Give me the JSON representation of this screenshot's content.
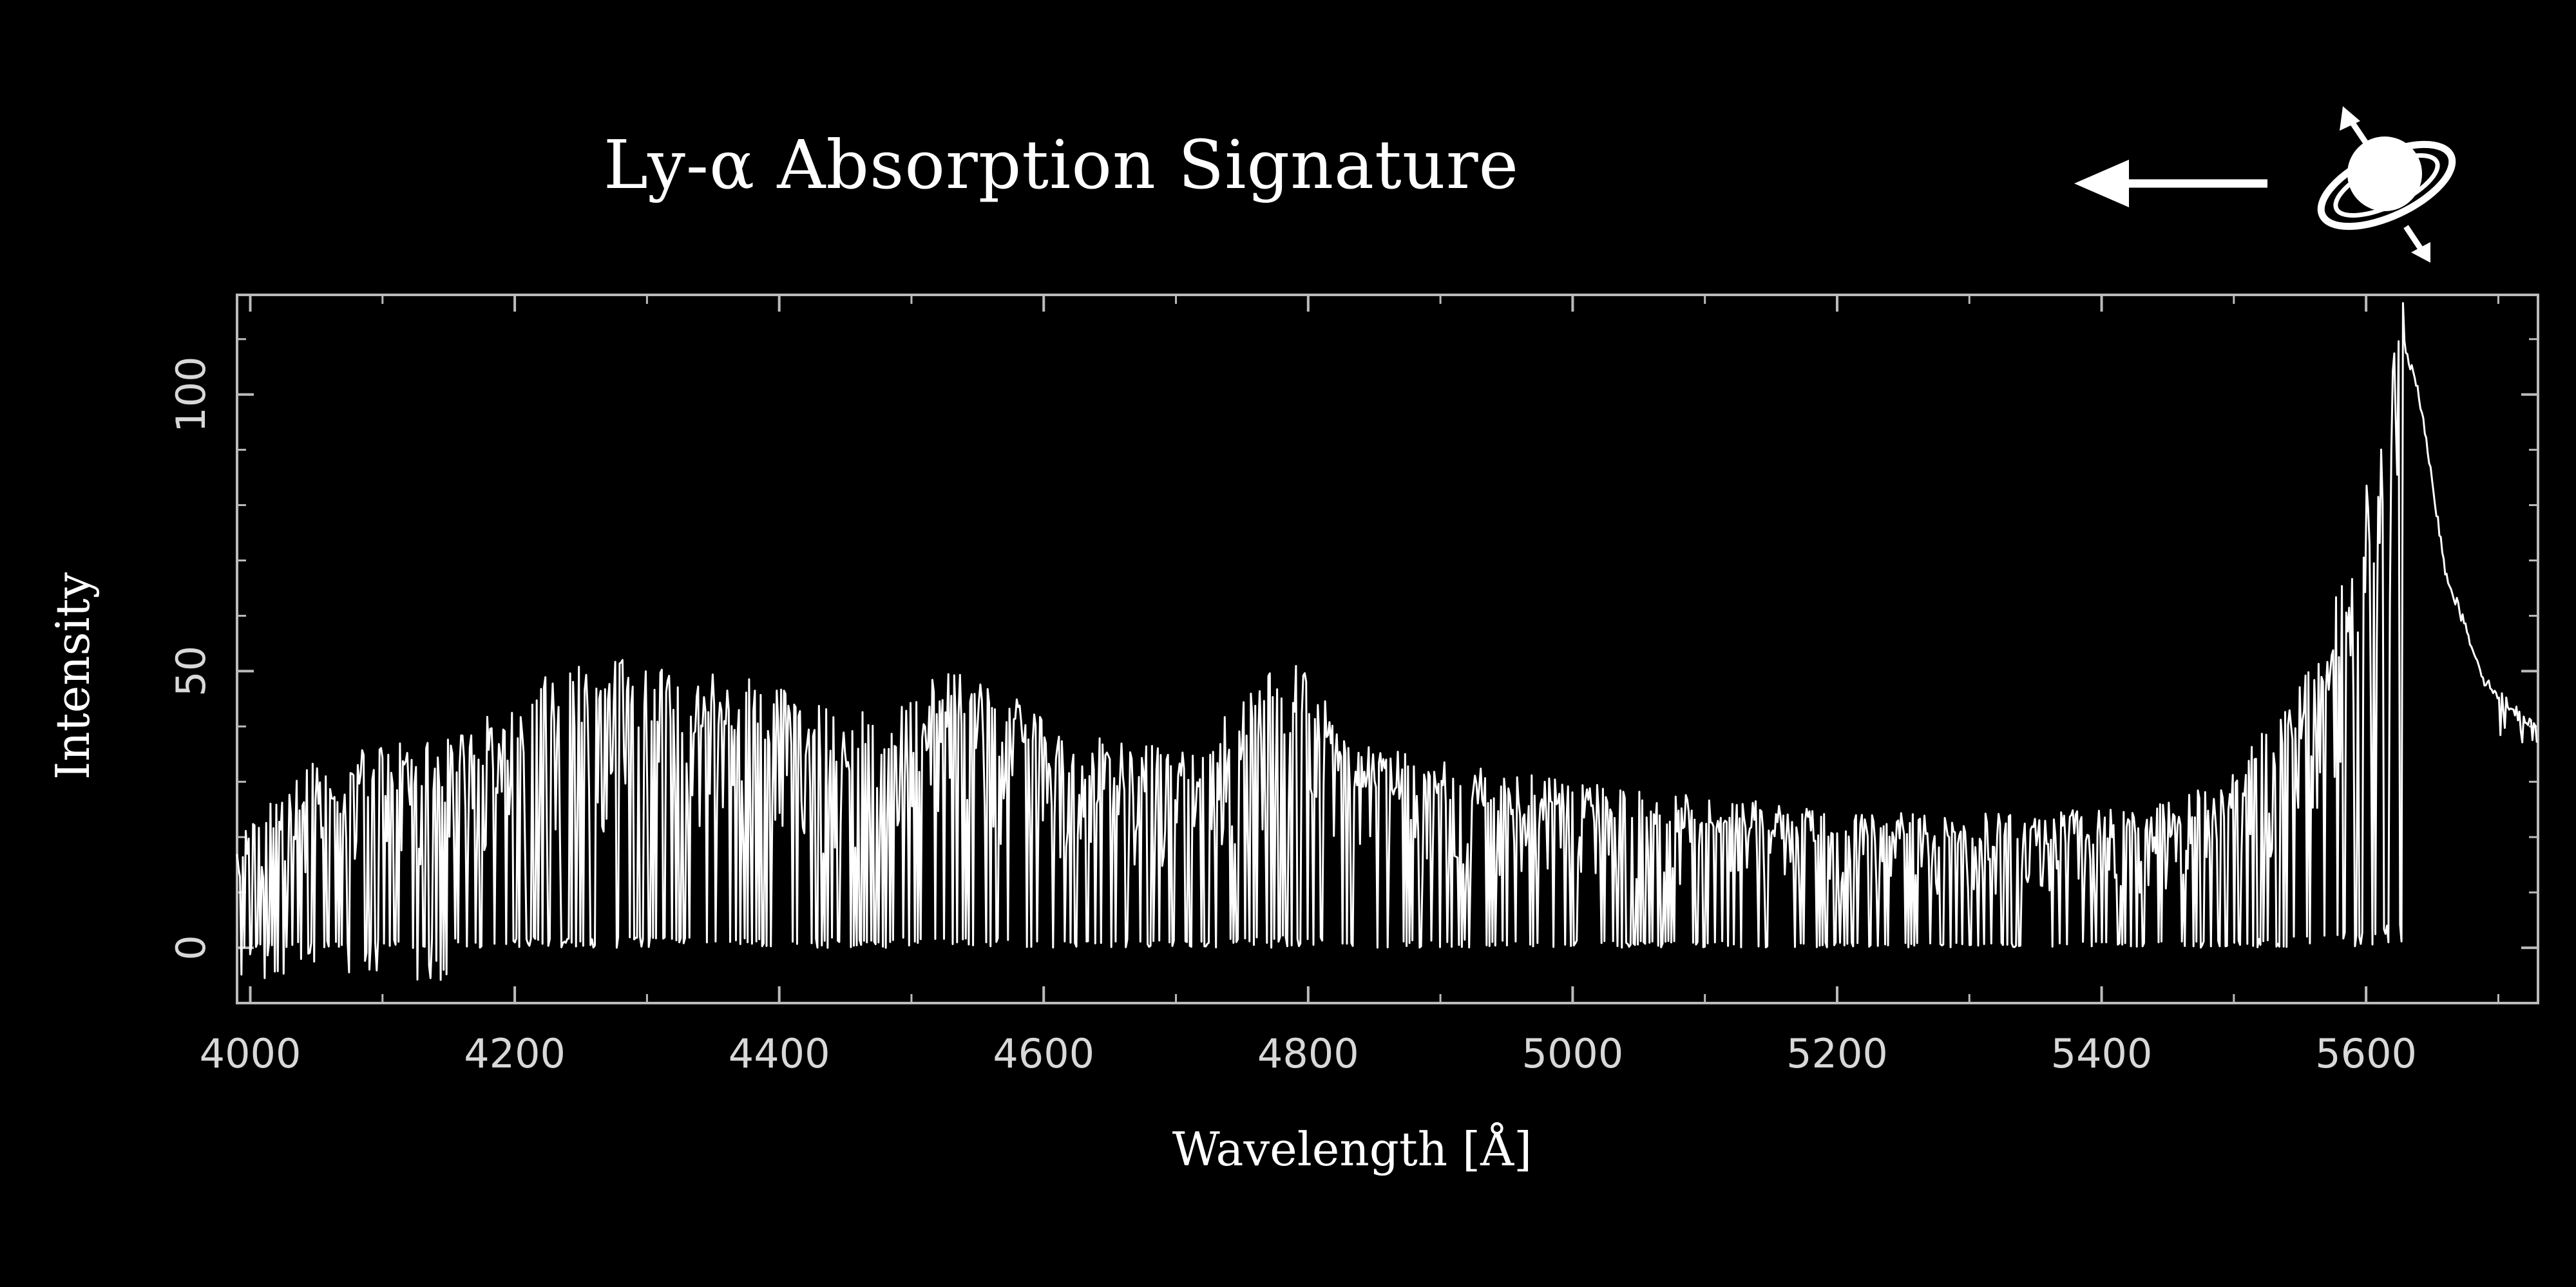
{
  "header": {
    "title": "Ly-α Absorption Signature",
    "icons": [
      "arrow-left-icon",
      "ringed-planet-icon"
    ]
  },
  "chart_data": {
    "type": "line",
    "xlabel": "Wavelength [Å]",
    "ylabel": "Intensity",
    "xlim": [
      3990,
      5730
    ],
    "ylim": [
      -10,
      118
    ],
    "xticks": [
      4000,
      4200,
      4400,
      4600,
      4800,
      5000,
      5200,
      5400,
      5600
    ],
    "yticks": [
      0,
      50,
      100
    ],
    "grid": false,
    "colors": {
      "background": "#000000",
      "line": "#ffffff",
      "axes": "#bbbbbb"
    },
    "series": [
      {
        "points": [
          [
            3990,
            18
          ],
          [
            4000,
            20
          ],
          [
            4050,
            30
          ],
          [
            4100,
            32
          ],
          [
            4150,
            33
          ],
          [
            4200,
            40
          ],
          [
            4250,
            47
          ],
          [
            4300,
            45
          ],
          [
            4350,
            44
          ],
          [
            4400,
            43
          ],
          [
            4450,
            36
          ],
          [
            4500,
            40
          ],
          [
            4530,
            44
          ],
          [
            4560,
            41
          ],
          [
            4600,
            38
          ],
          [
            4650,
            33
          ],
          [
            4700,
            31
          ],
          [
            4750,
            40
          ],
          [
            4790,
            46
          ],
          [
            4810,
            40
          ],
          [
            4830,
            33
          ],
          [
            4900,
            30
          ],
          [
            5000,
            26
          ],
          [
            5100,
            24
          ],
          [
            5200,
            22
          ],
          [
            5300,
            21
          ],
          [
            5400,
            22
          ],
          [
            5450,
            23
          ],
          [
            5500,
            28
          ],
          [
            5550,
            42
          ],
          [
            5590,
            62
          ],
          [
            5610,
            85
          ],
          [
            5625,
            112
          ],
          [
            5640,
            100
          ],
          [
            5660,
            68
          ],
          [
            5690,
            48
          ],
          [
            5730,
            39
          ]
        ]
      }
    ]
  }
}
